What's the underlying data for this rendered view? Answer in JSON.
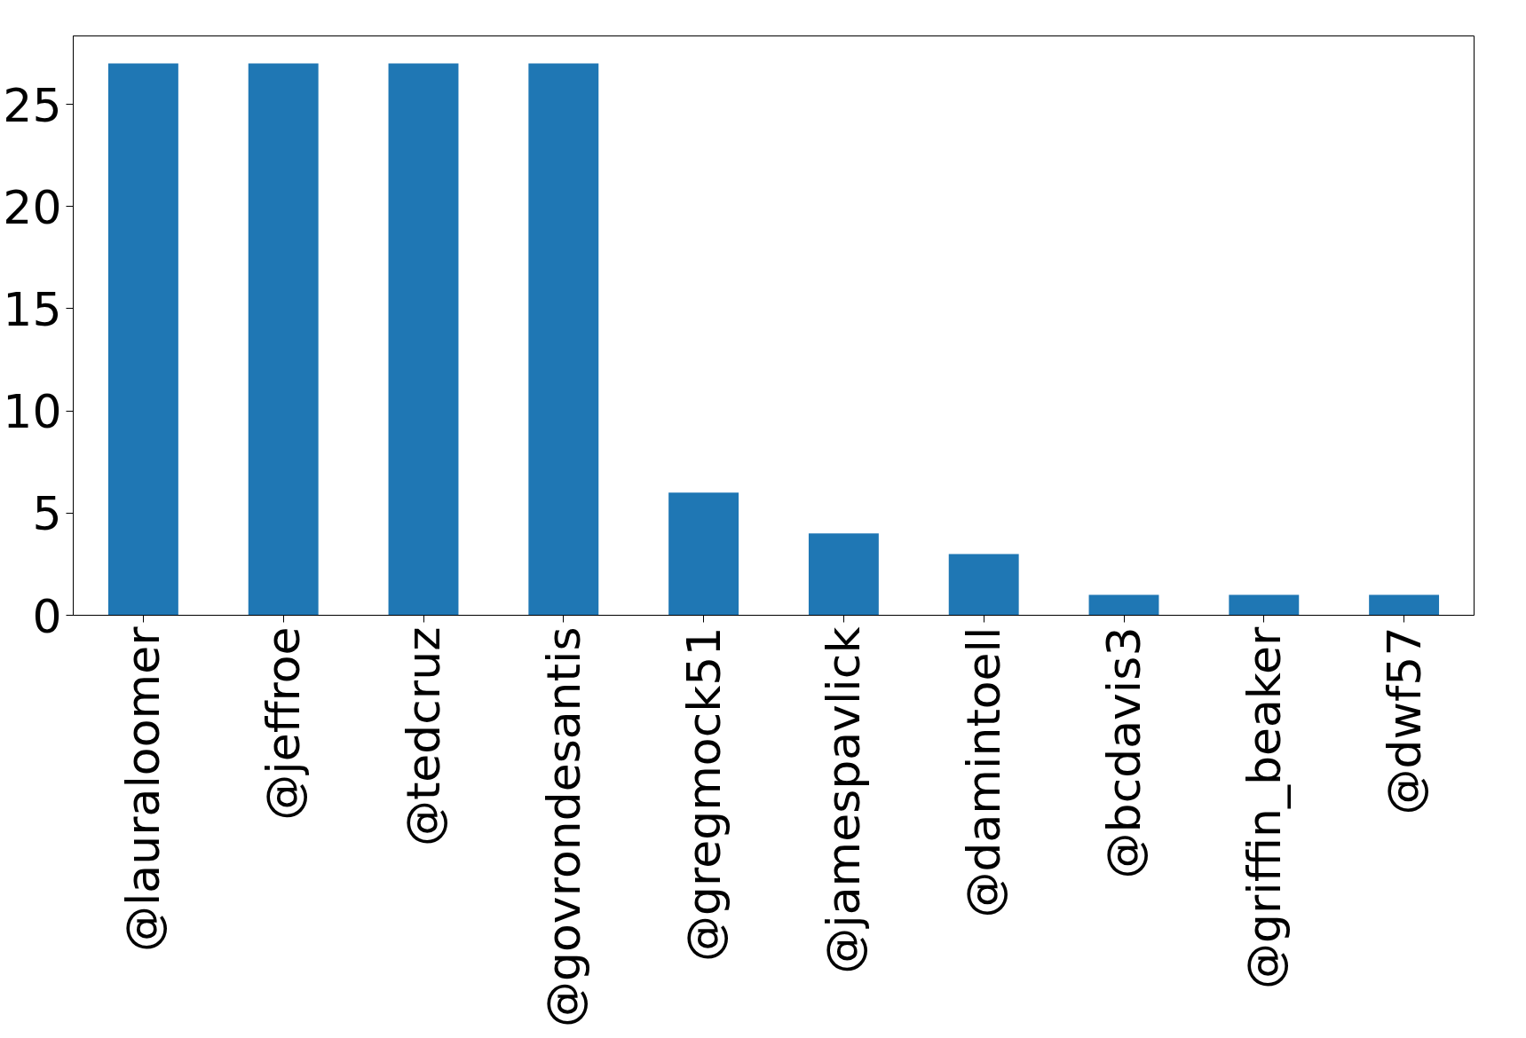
{
  "chart_data": {
    "type": "bar",
    "categories": [
      "@lauraloomer",
      "@jeffroe",
      "@tedcruz",
      "@govrondesantis",
      "@gregmock51",
      "@jamespavlick",
      "@damintoell",
      "@bcdavis3",
      "@griffin_beaker",
      "@dwf57"
    ],
    "values": [
      27,
      27,
      27,
      27,
      6,
      4,
      3,
      1,
      1,
      1
    ],
    "color": "#1f77b4",
    "ylim": [
      0,
      28.35
    ],
    "yticks": [
      0,
      5,
      10,
      15,
      20,
      25
    ],
    "grid": false
  }
}
